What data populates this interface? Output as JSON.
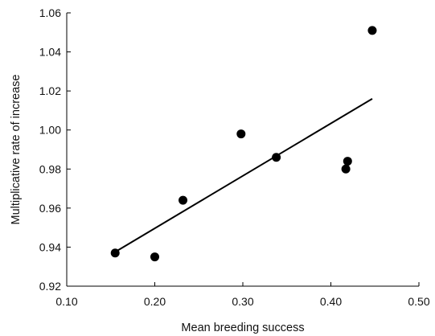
{
  "chart_data": {
    "type": "scatter",
    "title": "",
    "xlabel": "Mean breeding success",
    "ylabel": "Multiplicative rate of increase",
    "xlim": [
      0.1,
      0.5
    ],
    "ylim": [
      0.92,
      1.06
    ],
    "x_ticks": [
      "0.10",
      "0.20",
      "0.30",
      "0.40",
      "0.50"
    ],
    "y_ticks": [
      "0.92",
      "0.94",
      "0.96",
      "0.98",
      "1.00",
      "1.02",
      "1.04",
      "1.06"
    ],
    "grid": false,
    "legend": "none",
    "series": [
      {
        "points": [
          {
            "x": 0.155,
            "y": 0.937
          },
          {
            "x": 0.2,
            "y": 0.935
          },
          {
            "x": 0.232,
            "y": 0.964
          },
          {
            "x": 0.298,
            "y": 0.998
          },
          {
            "x": 0.338,
            "y": 0.986
          },
          {
            "x": 0.417,
            "y": 0.98
          },
          {
            "x": 0.419,
            "y": 0.984
          },
          {
            "x": 0.447,
            "y": 1.051
          }
        ],
        "color": "#000000"
      }
    ],
    "trendline": {
      "x": [
        0.153,
        0.447
      ],
      "y": [
        0.937,
        1.016
      ],
      "color": "#000000"
    }
  }
}
